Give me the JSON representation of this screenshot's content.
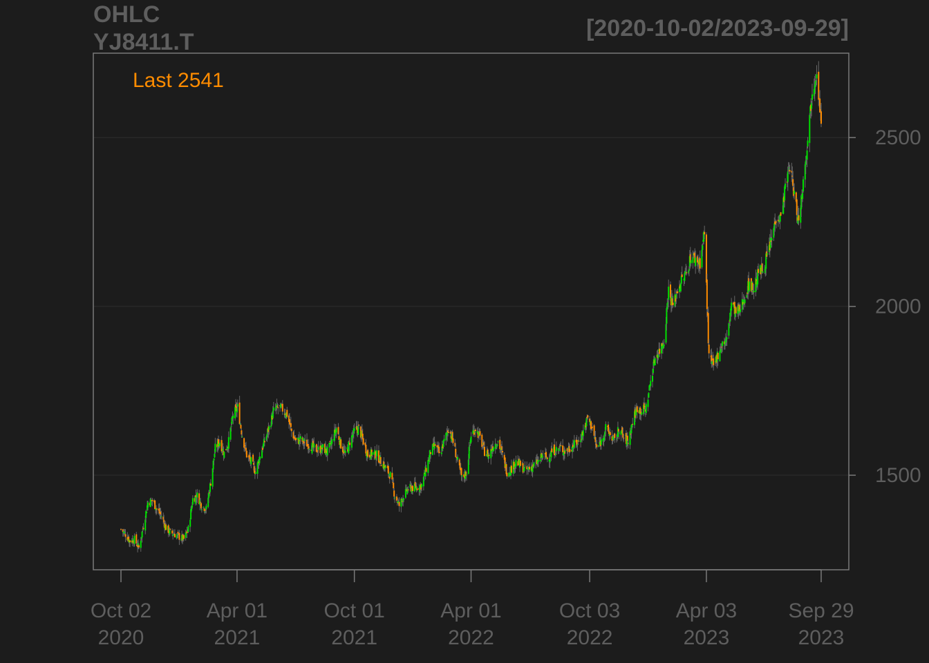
{
  "chart_data": {
    "type": "candlestick",
    "title": "OHLC",
    "subtitle": "YJ8411.T",
    "date_range_label": "[2020-10-02/2023-09-29]",
    "last_label": "Last 2541",
    "last_value": 2541,
    "ylim": [
      1220,
      2750
    ],
    "y_ticks": [
      1500,
      2000,
      2500
    ],
    "y_tick_labels": [
      "1500",
      "2000",
      "2500"
    ],
    "x_tick_labels": [
      {
        "date": "2020-10-02",
        "line1": "Oct 02",
        "line2": "2020"
      },
      {
        "date": "2021-04-01",
        "line1": "Apr 01",
        "line2": "2021"
      },
      {
        "date": "2021-10-01",
        "line1": "Oct 01",
        "line2": "2021"
      },
      {
        "date": "2022-04-01",
        "line1": "Apr 01",
        "line2": "2022"
      },
      {
        "date": "2022-10-03",
        "line1": "Oct 03",
        "line2": "2022"
      },
      {
        "date": "2023-04-03",
        "line1": "Apr 03",
        "line2": "2023"
      },
      {
        "date": "2023-09-29",
        "line1": "Sep 29",
        "line2": "2023"
      }
    ],
    "x_range": [
      "2020-10-02",
      "2023-09-29"
    ],
    "grid": true,
    "close_series": [
      [
        "2020-10-02",
        1340
      ],
      [
        "2020-10-09",
        1325
      ],
      [
        "2020-10-16",
        1305
      ],
      [
        "2020-10-23",
        1310
      ],
      [
        "2020-10-30",
        1285
      ],
      [
        "2020-11-06",
        1350
      ],
      [
        "2020-11-13",
        1420
      ],
      [
        "2020-11-20",
        1425
      ],
      [
        "2020-11-27",
        1400
      ],
      [
        "2020-12-04",
        1380
      ],
      [
        "2020-12-11",
        1345
      ],
      [
        "2020-12-18",
        1330
      ],
      [
        "2020-12-25",
        1325
      ],
      [
        "2021-01-08",
        1310
      ],
      [
        "2021-01-15",
        1340
      ],
      [
        "2021-01-22",
        1430
      ],
      [
        "2021-01-29",
        1440
      ],
      [
        "2021-02-05",
        1410
      ],
      [
        "2021-02-12",
        1400
      ],
      [
        "2021-02-19",
        1480
      ],
      [
        "2021-02-26",
        1580
      ],
      [
        "2021-03-05",
        1600
      ],
      [
        "2021-03-12",
        1565
      ],
      [
        "2021-03-19",
        1600
      ],
      [
        "2021-03-26",
        1680
      ],
      [
        "2021-04-02",
        1700
      ],
      [
        "2021-04-09",
        1620
      ],
      [
        "2021-04-16",
        1560
      ],
      [
        "2021-04-23",
        1540
      ],
      [
        "2021-04-30",
        1510
      ],
      [
        "2021-05-07",
        1560
      ],
      [
        "2021-05-14",
        1600
      ],
      [
        "2021-05-21",
        1640
      ],
      [
        "2021-05-28",
        1690
      ],
      [
        "2021-06-04",
        1700
      ],
      [
        "2021-06-11",
        1695
      ],
      [
        "2021-06-18",
        1680
      ],
      [
        "2021-06-25",
        1630
      ],
      [
        "2021-07-02",
        1600
      ],
      [
        "2021-07-09",
        1605
      ],
      [
        "2021-07-16",
        1595
      ],
      [
        "2021-07-23",
        1590
      ],
      [
        "2021-07-30",
        1580
      ],
      [
        "2021-08-06",
        1575
      ],
      [
        "2021-08-13",
        1580
      ],
      [
        "2021-08-20",
        1570
      ],
      [
        "2021-08-27",
        1600
      ],
      [
        "2021-09-03",
        1640
      ],
      [
        "2021-09-10",
        1590
      ],
      [
        "2021-09-17",
        1560
      ],
      [
        "2021-09-24",
        1600
      ],
      [
        "2021-10-01",
        1630
      ],
      [
        "2021-10-08",
        1640
      ],
      [
        "2021-10-15",
        1600
      ],
      [
        "2021-10-22",
        1560
      ],
      [
        "2021-10-29",
        1565
      ],
      [
        "2021-11-05",
        1560
      ],
      [
        "2021-11-12",
        1540
      ],
      [
        "2021-11-19",
        1520
      ],
      [
        "2021-11-26",
        1500
      ],
      [
        "2021-12-03",
        1440
      ],
      [
        "2021-12-10",
        1410
      ],
      [
        "2021-12-17",
        1440
      ],
      [
        "2021-12-24",
        1460
      ],
      [
        "2022-01-07",
        1465
      ],
      [
        "2022-01-14",
        1470
      ],
      [
        "2022-01-21",
        1520
      ],
      [
        "2022-01-28",
        1570
      ],
      [
        "2022-02-04",
        1590
      ],
      [
        "2022-02-11",
        1560
      ],
      [
        "2022-02-18",
        1600
      ],
      [
        "2022-02-25",
        1640
      ],
      [
        "2022-03-04",
        1600
      ],
      [
        "2022-03-11",
        1540
      ],
      [
        "2022-03-18",
        1490
      ],
      [
        "2022-03-25",
        1510
      ],
      [
        "2022-04-01",
        1620
      ],
      [
        "2022-04-08",
        1640
      ],
      [
        "2022-04-15",
        1610
      ],
      [
        "2022-04-22",
        1570
      ],
      [
        "2022-04-29",
        1560
      ],
      [
        "2022-05-06",
        1590
      ],
      [
        "2022-05-13",
        1600
      ],
      [
        "2022-05-20",
        1560
      ],
      [
        "2022-05-27",
        1510
      ],
      [
        "2022-06-03",
        1520
      ],
      [
        "2022-06-10",
        1540
      ],
      [
        "2022-06-17",
        1530
      ],
      [
        "2022-06-24",
        1515
      ],
      [
        "2022-07-01",
        1520
      ],
      [
        "2022-07-08",
        1530
      ],
      [
        "2022-07-15",
        1540
      ],
      [
        "2022-07-22",
        1560
      ],
      [
        "2022-07-29",
        1550
      ],
      [
        "2022-08-05",
        1570
      ],
      [
        "2022-08-12",
        1575
      ],
      [
        "2022-08-19",
        1580
      ],
      [
        "2022-08-26",
        1570
      ],
      [
        "2022-09-02",
        1580
      ],
      [
        "2022-09-09",
        1590
      ],
      [
        "2022-09-16",
        1600
      ],
      [
        "2022-09-23",
        1630
      ],
      [
        "2022-09-30",
        1670
      ],
      [
        "2022-10-07",
        1640
      ],
      [
        "2022-10-14",
        1580
      ],
      [
        "2022-10-21",
        1600
      ],
      [
        "2022-10-28",
        1640
      ],
      [
        "2022-11-04",
        1620
      ],
      [
        "2022-11-11",
        1600
      ],
      [
        "2022-11-18",
        1640
      ],
      [
        "2022-11-25",
        1610
      ],
      [
        "2022-12-02",
        1600
      ],
      [
        "2022-12-09",
        1660
      ],
      [
        "2022-12-16",
        1700
      ],
      [
        "2022-12-23",
        1690
      ],
      [
        "2022-12-30",
        1700
      ],
      [
        "2023-01-06",
        1780
      ],
      [
        "2023-01-13",
        1850
      ],
      [
        "2023-01-20",
        1870
      ],
      [
        "2023-01-27",
        1900
      ],
      [
        "2023-02-03",
        2050
      ],
      [
        "2023-02-10",
        2000
      ],
      [
        "2023-02-17",
        2050
      ],
      [
        "2023-02-24",
        2080
      ],
      [
        "2023-03-03",
        2100
      ],
      [
        "2023-03-10",
        2150
      ],
      [
        "2023-03-17",
        2140
      ],
      [
        "2023-03-24",
        2130
      ],
      [
        "2023-03-31",
        2220
      ],
      [
        "2023-04-07",
        1850
      ],
      [
        "2023-04-14",
        1820
      ],
      [
        "2023-04-21",
        1860
      ],
      [
        "2023-04-28",
        1890
      ],
      [
        "2023-05-05",
        1900
      ],
      [
        "2023-05-12",
        2010
      ],
      [
        "2023-05-19",
        1980
      ],
      [
        "2023-05-26",
        1990
      ],
      [
        "2023-06-02",
        2030
      ],
      [
        "2023-06-09",
        2070
      ],
      [
        "2023-06-16",
        2050
      ],
      [
        "2023-06-23",
        2100
      ],
      [
        "2023-06-30",
        2110
      ],
      [
        "2023-07-07",
        2150
      ],
      [
        "2023-07-14",
        2200
      ],
      [
        "2023-07-21",
        2270
      ],
      [
        "2023-07-28",
        2260
      ],
      [
        "2023-08-04",
        2350
      ],
      [
        "2023-08-11",
        2420
      ],
      [
        "2023-08-18",
        2330
      ],
      [
        "2023-08-25",
        2250
      ],
      [
        "2023-09-01",
        2370
      ],
      [
        "2023-09-08",
        2500
      ],
      [
        "2023-09-15",
        2640
      ],
      [
        "2023-09-22",
        2700
      ],
      [
        "2023-09-29",
        2541
      ]
    ]
  },
  "colors": {
    "background": "#1c1c1c",
    "axis_text": "#5e5e5e",
    "box": "#7a7a7a",
    "grid": "#282828",
    "up": "#00e000",
    "down": "#ff8c00",
    "wick": "#666666",
    "last_label": "#ff8c00"
  }
}
